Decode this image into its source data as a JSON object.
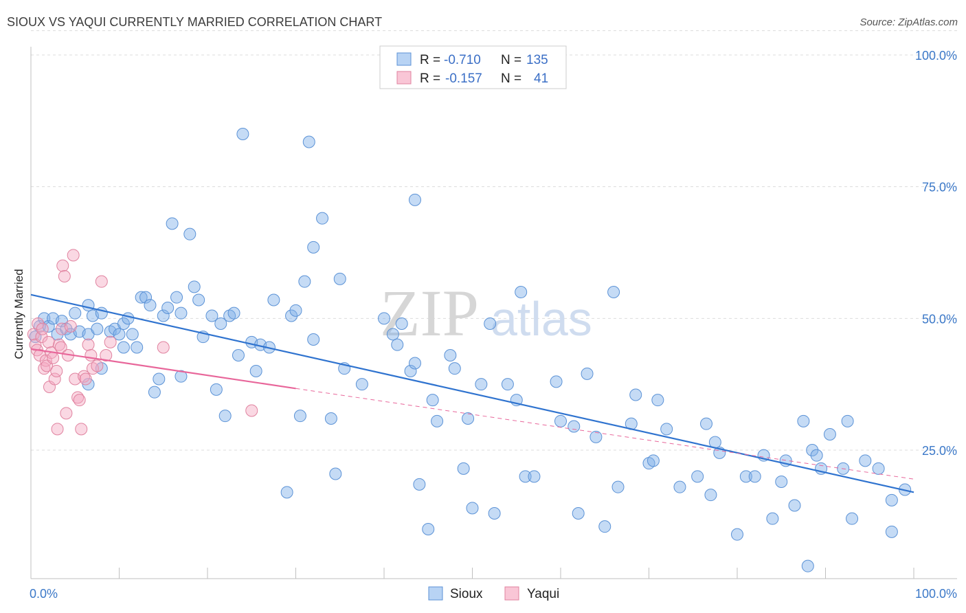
{
  "title": "SIOUX VS YAQUI CURRENTLY MARRIED CORRELATION CHART",
  "source": "Source: ZipAtlas.com",
  "watermark": {
    "zip": "ZIP",
    "atlas": "atlas"
  },
  "chart_data": {
    "type": "scatter",
    "xlabel": "",
    "ylabel": "Currently Married",
    "xlim": [
      0,
      100
    ],
    "ylim": [
      0,
      105
    ],
    "x_tick_labels": [
      {
        "value": 0,
        "label": "0.0%"
      },
      {
        "value": 100,
        "label": "100.0%"
      }
    ],
    "y_ticks": [
      {
        "value": 25,
        "label": "25.0%"
      },
      {
        "value": 50,
        "label": "50.0%"
      },
      {
        "value": 75,
        "label": "75.0%"
      },
      {
        "value": 100,
        "label": "100.0%"
      }
    ],
    "legend": {
      "entries": [
        {
          "r_label": "R =",
          "r_value": "-0.710",
          "n_label": "N =",
          "n_value": "135"
        },
        {
          "r_label": "R =",
          "r_value": "-0.157",
          "n_label": "N =",
          "n_value": "41"
        }
      ]
    },
    "series": [
      {
        "name": "Sioux",
        "color": "#7fb0e8",
        "stroke": "#5b92d6",
        "trend_color": "#2f73cf",
        "trend": {
          "x0": 0,
          "y0": 54.5,
          "x1": 100,
          "y1": 17.0
        },
        "points": [
          [
            0.5,
            46.5
          ],
          [
            1,
            48.5
          ],
          [
            1.5,
            50
          ],
          [
            2,
            48.5
          ],
          [
            2.5,
            50
          ],
          [
            3,
            47
          ],
          [
            3.5,
            49.5
          ],
          [
            4,
            48
          ],
          [
            4.5,
            47
          ],
          [
            5,
            51
          ],
          [
            5.5,
            47.5
          ],
          [
            6.5,
            47
          ],
          [
            6.5,
            52.5
          ],
          [
            6.5,
            37.5
          ],
          [
            7,
            50.5
          ],
          [
            7.5,
            48
          ],
          [
            8,
            51
          ],
          [
            8,
            40.5
          ],
          [
            9,
            47.5
          ],
          [
            9.5,
            48
          ],
          [
            10,
            47
          ],
          [
            10.5,
            49
          ],
          [
            10.5,
            44.5
          ],
          [
            11,
            50
          ],
          [
            11.5,
            47
          ],
          [
            12,
            44.5
          ],
          [
            12.5,
            54
          ],
          [
            13,
            54
          ],
          [
            13.5,
            52.5
          ],
          [
            14,
            36
          ],
          [
            14.5,
            38.5
          ],
          [
            15,
            50.5
          ],
          [
            15.5,
            52
          ],
          [
            16,
            68
          ],
          [
            16.5,
            54
          ],
          [
            17,
            51
          ],
          [
            17,
            39
          ],
          [
            18,
            66
          ],
          [
            18.5,
            56
          ],
          [
            19,
            53.5
          ],
          [
            19.5,
            46.5
          ],
          [
            20.5,
            50.5
          ],
          [
            21,
            36.5
          ],
          [
            21.5,
            49
          ],
          [
            22,
            31.5
          ],
          [
            22.5,
            50.5
          ],
          [
            23,
            51
          ],
          [
            23.5,
            43
          ],
          [
            24,
            85
          ],
          [
            25,
            45.5
          ],
          [
            25.5,
            40
          ],
          [
            26,
            45
          ],
          [
            27,
            44.5
          ],
          [
            27.5,
            53.5
          ],
          [
            29,
            17
          ],
          [
            29.5,
            50.5
          ],
          [
            30,
            51.5
          ],
          [
            30.5,
            31.5
          ],
          [
            31,
            57
          ],
          [
            31.5,
            83.5
          ],
          [
            32,
            46
          ],
          [
            32,
            63.5
          ],
          [
            33,
            69
          ],
          [
            34,
            31
          ],
          [
            34.5,
            20.5
          ],
          [
            35,
            57.5
          ],
          [
            35.5,
            40.5
          ],
          [
            37.5,
            37.5
          ],
          [
            40,
            50
          ],
          [
            41,
            47
          ],
          [
            41.5,
            45
          ],
          [
            42,
            49
          ],
          [
            43,
            40
          ],
          [
            43.5,
            41.5
          ],
          [
            43.5,
            72.5
          ],
          [
            44,
            18.5
          ],
          [
            45,
            10
          ],
          [
            45.5,
            34.5
          ],
          [
            46,
            30.5
          ],
          [
            47.5,
            43
          ],
          [
            48,
            40.5
          ],
          [
            49,
            21.5
          ],
          [
            49.5,
            31
          ],
          [
            50,
            14
          ],
          [
            51,
            37.5
          ],
          [
            52,
            49
          ],
          [
            52.5,
            13
          ],
          [
            54,
            37.5
          ],
          [
            55,
            34.5
          ],
          [
            55.5,
            55
          ],
          [
            56,
            20
          ],
          [
            57,
            20
          ],
          [
            59.5,
            38
          ],
          [
            60,
            30.5
          ],
          [
            61.5,
            29.5
          ],
          [
            62,
            13
          ],
          [
            63,
            39.5
          ],
          [
            64,
            27.5
          ],
          [
            65,
            10.5
          ],
          [
            66,
            55
          ],
          [
            66.5,
            18
          ],
          [
            68,
            30
          ],
          [
            68.5,
            35.5
          ],
          [
            70,
            22.5
          ],
          [
            70.5,
            23
          ],
          [
            71,
            34.5
          ],
          [
            72,
            29
          ],
          [
            73.5,
            18
          ],
          [
            75.5,
            20
          ],
          [
            76.5,
            30
          ],
          [
            77,
            16.5
          ],
          [
            77.5,
            26.5
          ],
          [
            78,
            24.5
          ],
          [
            80,
            9
          ],
          [
            81,
            20
          ],
          [
            82,
            20
          ],
          [
            83,
            24
          ],
          [
            84,
            12
          ],
          [
            85,
            19
          ],
          [
            85.5,
            23
          ],
          [
            86.5,
            14.5
          ],
          [
            87.5,
            30.5
          ],
          [
            88,
            3
          ],
          [
            88.5,
            25
          ],
          [
            89,
            24
          ],
          [
            89.5,
            21.5
          ],
          [
            90.5,
            28
          ],
          [
            92,
            21.5
          ],
          [
            92.5,
            30.5
          ],
          [
            93,
            12
          ],
          [
            94.5,
            23
          ],
          [
            96,
            21.5
          ],
          [
            97.5,
            15.5
          ],
          [
            97.5,
            9.5
          ],
          [
            99,
            17.5
          ]
        ]
      },
      {
        "name": "Yaqui",
        "color": "#f4a9c0",
        "stroke": "#e0829f",
        "trend_color": "#e8669a",
        "trend": {
          "x0": 0,
          "y0": 44.2,
          "x1": 30,
          "y1": 36.7
        },
        "trend_ext": {
          "x0": 30,
          "y0": 36.7,
          "x1": 100,
          "y1": 19.5
        },
        "points": [
          [
            0.3,
            47
          ],
          [
            0.5,
            45
          ],
          [
            0.7,
            44
          ],
          [
            0.8,
            49
          ],
          [
            1,
            43
          ],
          [
            1.2,
            46.5
          ],
          [
            1.3,
            48
          ],
          [
            1.5,
            40.5
          ],
          [
            1.7,
            42
          ],
          [
            1.8,
            41
          ],
          [
            2,
            45.5
          ],
          [
            2.1,
            37
          ],
          [
            2.3,
            43.5
          ],
          [
            2.5,
            42.5
          ],
          [
            2.7,
            38.5
          ],
          [
            2.9,
            40
          ],
          [
            3,
            29
          ],
          [
            3.2,
            45
          ],
          [
            3.4,
            44.5
          ],
          [
            3.5,
            48
          ],
          [
            3.6,
            60
          ],
          [
            3.8,
            58
          ],
          [
            4,
            32
          ],
          [
            4.2,
            43
          ],
          [
            4.5,
            48.5
          ],
          [
            4.8,
            62
          ],
          [
            5,
            38.5
          ],
          [
            5.3,
            35
          ],
          [
            5.5,
            34.5
          ],
          [
            5.7,
            29
          ],
          [
            6,
            39
          ],
          [
            6.2,
            38.5
          ],
          [
            6.5,
            45
          ],
          [
            6.8,
            43
          ],
          [
            7,
            40.5
          ],
          [
            7.5,
            41
          ],
          [
            8,
            57
          ],
          [
            8.5,
            43
          ],
          [
            9,
            45.5
          ],
          [
            15,
            44.5
          ],
          [
            25,
            32.5
          ]
        ]
      }
    ]
  },
  "bottom_legend": [
    "Sioux",
    "Yaqui"
  ]
}
